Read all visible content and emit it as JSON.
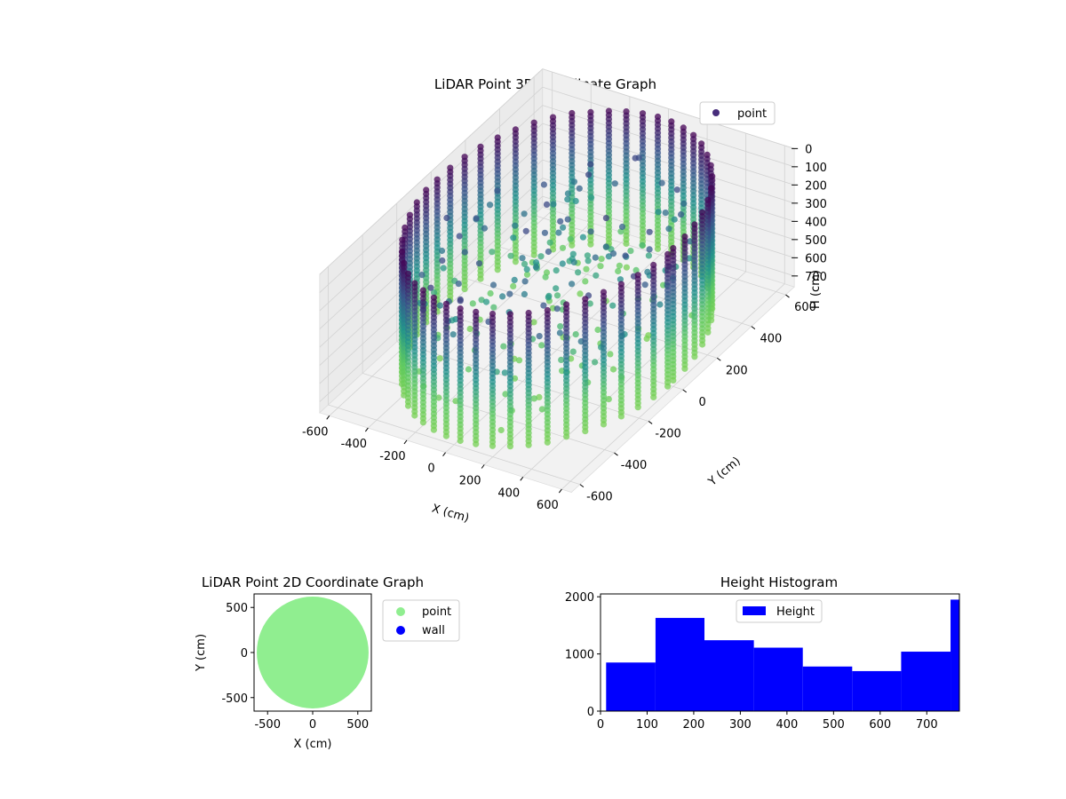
{
  "chart_data": [
    {
      "type": "scatter",
      "projection": "3d",
      "title": "LiDAR Point 3D Coordinate Graph",
      "xlabel": "X (cm)",
      "ylabel": "Y (cm)",
      "zlabel": "H (cm)",
      "xlim": [
        -650,
        650
      ],
      "ylim": [
        -650,
        650
      ],
      "zlim": [
        760,
        0
      ],
      "z_axis_inverted": true,
      "xticks": [
        -600,
        -400,
        -200,
        0,
        200,
        400,
        600
      ],
      "yticks": [
        -600,
        -400,
        -200,
        0,
        200,
        400,
        600
      ],
      "zticks": [
        0,
        100,
        200,
        300,
        400,
        500,
        600,
        700
      ],
      "legend": {
        "entries": [
          "point"
        ],
        "placement": "upper-right"
      },
      "series": [
        {
          "name": "point",
          "color_by": "height",
          "colormap": "viridis",
          "description_shape": "cylindrical wall of radius ~600 cm spanning H 0-760 cm with scattered interior points",
          "radius": 600,
          "h_range": [
            0,
            760
          ]
        }
      ],
      "grid": true
    },
    {
      "type": "scatter",
      "title": "LiDAR Point 2D Coordinate Graph",
      "xlabel": "X (cm)",
      "ylabel": "Y (cm)",
      "xlim": [
        -650,
        650
      ],
      "ylim": [
        -650,
        650
      ],
      "xticks": [
        -500,
        0,
        500
      ],
      "yticks": [
        -500,
        0,
        500
      ],
      "legend": {
        "entries": [
          "point",
          "wall"
        ],
        "placement": "outside-right"
      },
      "series": [
        {
          "name": "point",
          "color": "#90ee90",
          "shape": "filled disc radius ~620 cm"
        },
        {
          "name": "wall",
          "color": "#0000ff"
        }
      ]
    },
    {
      "type": "bar",
      "title": "Height Histogram",
      "xlim": [
        0,
        770
      ],
      "ylim": [
        0,
        2050
      ],
      "xticks": [
        0,
        100,
        200,
        300,
        400,
        500,
        600,
        700
      ],
      "yticks": [
        0,
        1000,
        2000
      ],
      "legend": {
        "entries": [
          "Height"
        ],
        "placement": "upper-center"
      },
      "color": "#0000ff",
      "series": [
        {
          "name": "Height",
          "bins": [
            {
              "x0": 12,
              "x1": 118,
              "count": 850
            },
            {
              "x0": 118,
              "x1": 223,
              "count": 1630
            },
            {
              "x0": 223,
              "x1": 329,
              "count": 1240
            },
            {
              "x0": 329,
              "x1": 434,
              "count": 1110
            },
            {
              "x0": 434,
              "x1": 540,
              "count": 780
            },
            {
              "x0": 540,
              "x1": 645,
              "count": 700
            },
            {
              "x0": 645,
              "x1": 751,
              "count": 1040
            },
            {
              "x0": 751,
              "x1": 770,
              "count": 1950
            }
          ]
        }
      ]
    }
  ],
  "colors": {
    "histogram_bar": "#0000ff",
    "point_2d": "#90ee90",
    "wall": "#0000ff",
    "legend_point_3d": "#472d7b"
  }
}
